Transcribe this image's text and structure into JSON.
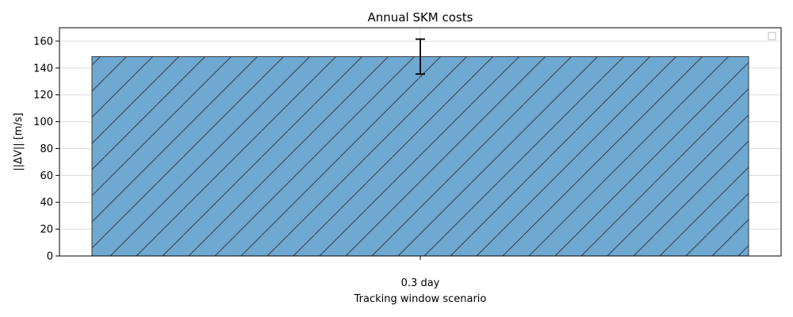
{
  "chart_data": {
    "type": "bar",
    "title": "Annual SKM costs",
    "xlabel": "Tracking window scenario",
    "ylabel": "||ΔV|| [m/s]",
    "categories": [
      "0.3 day"
    ],
    "values": [
      148.5
    ],
    "error": [
      13
    ],
    "ylim": [
      0,
      170
    ],
    "yticks": [
      0,
      20,
      40,
      60,
      80,
      100,
      120,
      140,
      160
    ],
    "grid": true,
    "legend": "top-right",
    "bar_color": "#6fa8d0",
    "bar_edge_color": "#3a3a3a",
    "hatch": "diagonal",
    "error_color": "#000000"
  }
}
